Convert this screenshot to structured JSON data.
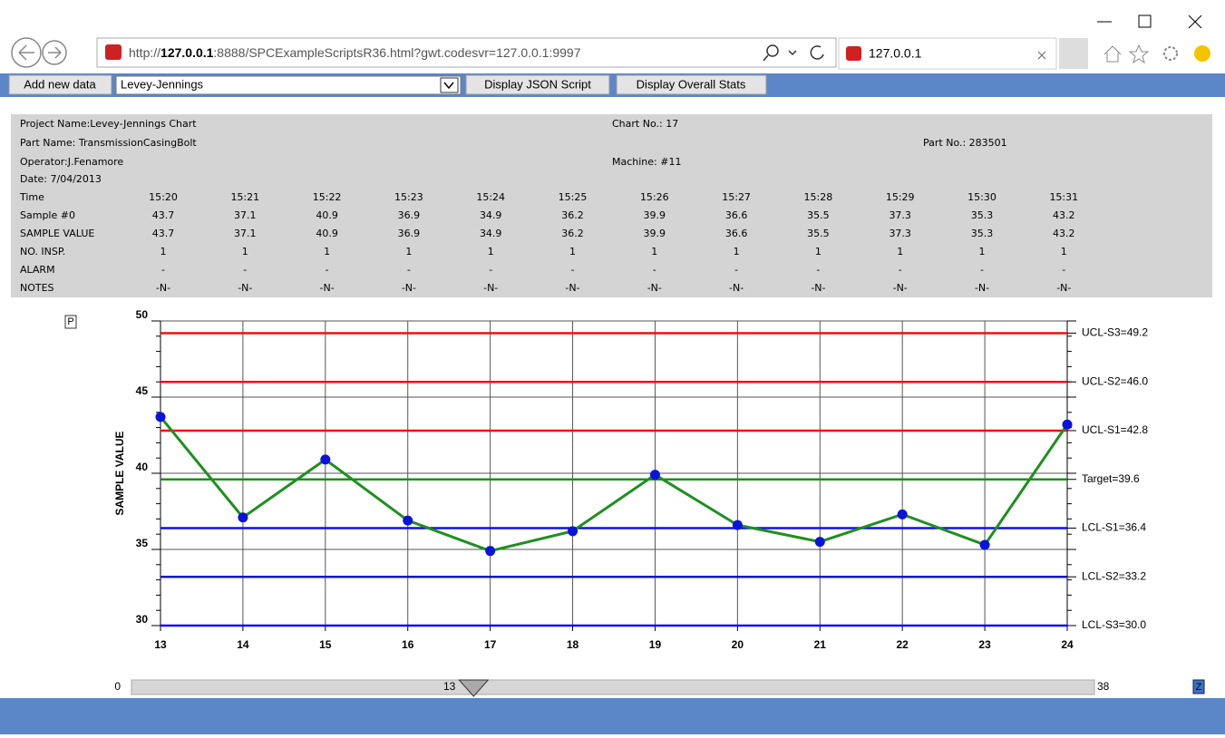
{
  "browser": {
    "url_scheme": "http://",
    "url_host": "127.0.0.1",
    "url_rest": ":8888/SPCExampleScriptsR36.html?gwt.codesvr=127.0.0.1:9997",
    "tab_title": "127.0.0.1"
  },
  "toolbar": {
    "add_button": "Add new data",
    "select": "Levey-Jennings",
    "json_button": "Display JSON Script",
    "stats_button": "Display Overall Stats"
  },
  "info": {
    "project": "Project Name:Levey-Jennings Chart",
    "chart_no": "Chart No.: 17",
    "part_name": "Part Name: TransmissionCasingBolt",
    "part_no": "Part No.: 283501",
    "operator": "Operator:J.Fenamore",
    "machine": "Machine: #11",
    "date": "Date: 7/04/2013"
  },
  "table": {
    "rows": [
      [
        "Time",
        "15:20",
        "15:21",
        "15:22",
        "15:23",
        "15:24",
        "15:25",
        "15:26",
        "15:27",
        "15:28",
        "15:29",
        "15:30",
        "15:31"
      ],
      [
        "Sample #0",
        "43.7",
        "37.1",
        "40.9",
        "36.9",
        "34.9",
        "36.2",
        "39.9",
        "36.6",
        "35.5",
        "37.3",
        "35.3",
        "43.2"
      ],
      [
        "SAMPLE VALUE",
        "43.7",
        "37.1",
        "40.9",
        "36.9",
        "34.9",
        "36.2",
        "39.9",
        "36.6",
        "35.5",
        "37.3",
        "35.3",
        "43.2"
      ],
      [
        "NO. INSP.",
        "1",
        "1",
        "1",
        "1",
        "1",
        "1",
        "1",
        "1",
        "1",
        "1",
        "1",
        "1"
      ],
      [
        "ALARM",
        "-",
        "-",
        "-",
        "-",
        "-",
        "-",
        "-",
        "-",
        "-",
        "-",
        "-",
        "-"
      ],
      [
        "NOTES",
        "-N-",
        "-N-",
        "-N-",
        "-N-",
        "-N-",
        "-N-",
        "-N-",
        "-N-",
        "-N-",
        "-N-",
        "-N-",
        "-N-"
      ]
    ]
  },
  "chart_data": {
    "type": "line",
    "y_label": "SAMPLE VALUE",
    "x": [
      13,
      14,
      15,
      16,
      17,
      18,
      19,
      20,
      21,
      22,
      23,
      24
    ],
    "values": [
      43.7,
      37.1,
      40.9,
      36.9,
      34.9,
      36.2,
      39.9,
      36.6,
      35.5,
      37.3,
      35.3,
      43.2
    ],
    "line_color": "#1f8f1f",
    "marker_color": "#0a14d8",
    "xlim": [
      13,
      24
    ],
    "xticks": [
      13,
      14,
      15,
      16,
      17,
      18,
      19,
      20,
      21,
      22,
      23,
      24
    ],
    "ylim": [
      30,
      50
    ],
    "yticks": [
      30,
      35,
      40,
      45,
      50
    ],
    "y_minor_ticks": [
      31,
      32,
      33,
      34,
      36,
      37,
      38,
      39,
      41,
      42,
      43,
      44,
      46,
      47,
      48,
      49
    ],
    "grid": true,
    "limits": [
      {
        "label": "UCL-S3=49.2",
        "value": 49.2,
        "color": "#ee1111"
      },
      {
        "label": "UCL-S2=46.0",
        "value": 46.0,
        "color": "#ee1111"
      },
      {
        "label": "UCL-S1=42.8",
        "value": 42.8,
        "color": "#ee1111"
      },
      {
        "label": "Target=39.6",
        "value": 39.6,
        "color": "#1f8f1f"
      },
      {
        "label": "LCL-S1=36.4",
        "value": 36.4,
        "color": "#1010e0"
      },
      {
        "label": "LCL-S2=33.2",
        "value": 33.2,
        "color": "#1010e0"
      },
      {
        "label": "LCL-S3=30.0",
        "value": 30.0,
        "color": "#1010e0"
      }
    ]
  },
  "scrollbar": {
    "min": 0,
    "max": 38,
    "value": 13
  },
  "icons": {
    "print": "P",
    "zoom": "Z"
  }
}
